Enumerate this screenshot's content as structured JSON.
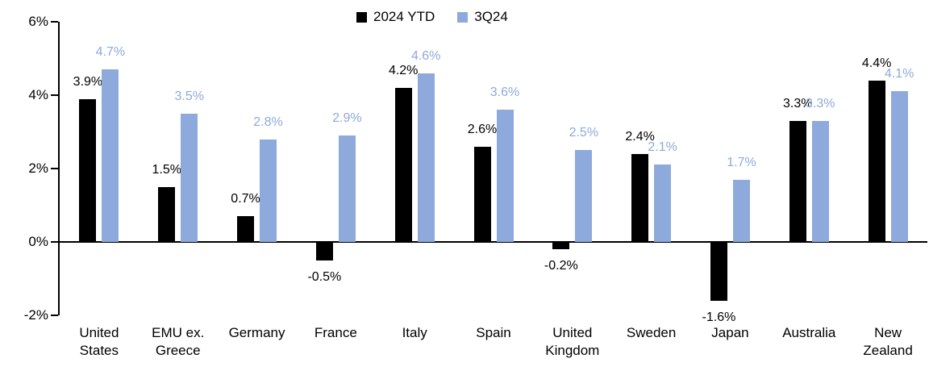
{
  "chart_data": {
    "type": "bar",
    "title": "",
    "xlabel": "",
    "ylabel": "",
    "categories": [
      "United States",
      "EMU ex. Greece",
      "Germany",
      "France",
      "Italy",
      "Spain",
      "United Kingdom",
      "Sweden",
      "Japan",
      "Australia",
      "New Zealand"
    ],
    "series": [
      {
        "name": "2024 YTD",
        "color": "#000000",
        "label_color": "#000000",
        "values": [
          3.9,
          1.5,
          0.7,
          -0.5,
          4.2,
          2.6,
          -0.2,
          2.4,
          -1.6,
          3.3,
          4.4
        ],
        "labels": [
          "3.9%",
          "1.5%",
          "0.7%",
          "-0.5%",
          "4.2%",
          "2.6%",
          "-0.2%",
          "2.4%",
          "-1.6%",
          "3.3%",
          "4.4%"
        ]
      },
      {
        "name": "3Q24",
        "color": "#8EA9DB",
        "label_color": "#8EA9DB",
        "values": [
          4.7,
          3.5,
          2.8,
          2.9,
          4.6,
          3.6,
          2.5,
          2.1,
          1.7,
          3.3,
          4.1
        ],
        "labels": [
          "4.7%",
          "3.5%",
          "2.8%",
          "2.9%",
          "4.6%",
          "3.6%",
          "2.5%",
          "2.1%",
          "1.7%",
          "3.3%",
          "4.1%"
        ]
      }
    ],
    "ylim": [
      -2,
      6
    ],
    "yticks": [
      {
        "value": 6,
        "label": "6%"
      },
      {
        "value": 4,
        "label": "4%"
      },
      {
        "value": 2,
        "label": "2%"
      },
      {
        "value": 0,
        "label": "0%"
      },
      {
        "value": -2,
        "label": "-2%"
      }
    ],
    "grid": false,
    "legend_position": "top-center",
    "axis_color": "#000000",
    "background_color": "#FFFFFF"
  }
}
